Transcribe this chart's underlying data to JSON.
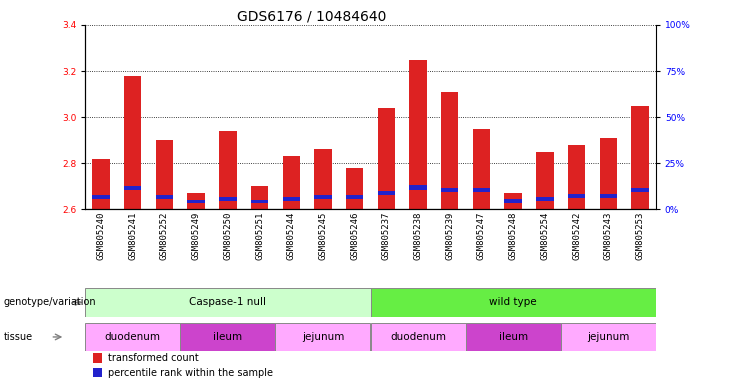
{
  "title": "GDS6176 / 10484640",
  "samples": [
    "GSM805240",
    "GSM805241",
    "GSM805252",
    "GSM805249",
    "GSM805250",
    "GSM805251",
    "GSM805244",
    "GSM805245",
    "GSM805246",
    "GSM805237",
    "GSM805238",
    "GSM805239",
    "GSM805247",
    "GSM805248",
    "GSM805254",
    "GSM805242",
    "GSM805243",
    "GSM805253"
  ],
  "transformed_count": [
    2.82,
    3.18,
    2.9,
    2.67,
    2.94,
    2.7,
    2.83,
    2.86,
    2.78,
    3.04,
    3.25,
    3.11,
    2.95,
    2.67,
    2.85,
    2.88,
    2.91,
    3.05
  ],
  "percentile_bottom": [
    2.645,
    2.685,
    2.646,
    2.626,
    2.637,
    2.626,
    2.637,
    2.646,
    2.646,
    2.662,
    2.684,
    2.673,
    2.673,
    2.626,
    2.637,
    2.648,
    2.648,
    2.673
  ],
  "percentile_height": [
    0.018,
    0.018,
    0.018,
    0.014,
    0.018,
    0.014,
    0.018,
    0.018,
    0.018,
    0.018,
    0.022,
    0.018,
    0.018,
    0.018,
    0.018,
    0.018,
    0.018,
    0.018
  ],
  "ylim": [
    2.6,
    3.4
  ],
  "yticks": [
    2.6,
    2.8,
    3.0,
    3.2,
    3.4
  ],
  "right_yticks_vals": [
    0,
    25,
    50,
    75,
    100
  ],
  "right_ytick_labels": [
    "0%",
    "25%",
    "50%",
    "75%",
    "100%"
  ],
  "bar_color": "#dd2222",
  "blue_color": "#2222cc",
  "genotype_groups": [
    {
      "label": "Caspase-1 null",
      "start": 0,
      "end": 9,
      "color": "#ccffcc"
    },
    {
      "label": "wild type",
      "start": 9,
      "end": 18,
      "color": "#66ee44"
    }
  ],
  "tissue_groups": [
    {
      "label": "duodenum",
      "start": 0,
      "end": 3,
      "color": "#ffaaff"
    },
    {
      "label": "ileum",
      "start": 3,
      "end": 6,
      "color": "#cc44cc"
    },
    {
      "label": "jejunum",
      "start": 6,
      "end": 9,
      "color": "#ffaaff"
    },
    {
      "label": "duodenum",
      "start": 9,
      "end": 12,
      "color": "#ffaaff"
    },
    {
      "label": "ileum",
      "start": 12,
      "end": 15,
      "color": "#cc44cc"
    },
    {
      "label": "jejunum",
      "start": 15,
      "end": 18,
      "color": "#ffaaff"
    }
  ],
  "legend_items": [
    {
      "label": "transformed count",
      "color": "#dd2222"
    },
    {
      "label": "percentile rank within the sample",
      "color": "#2222cc"
    }
  ],
  "bar_width": 0.55,
  "title_fontsize": 10,
  "label_fontsize": 7,
  "tick_fontsize": 6.5,
  "annot_fontsize": 7.5
}
